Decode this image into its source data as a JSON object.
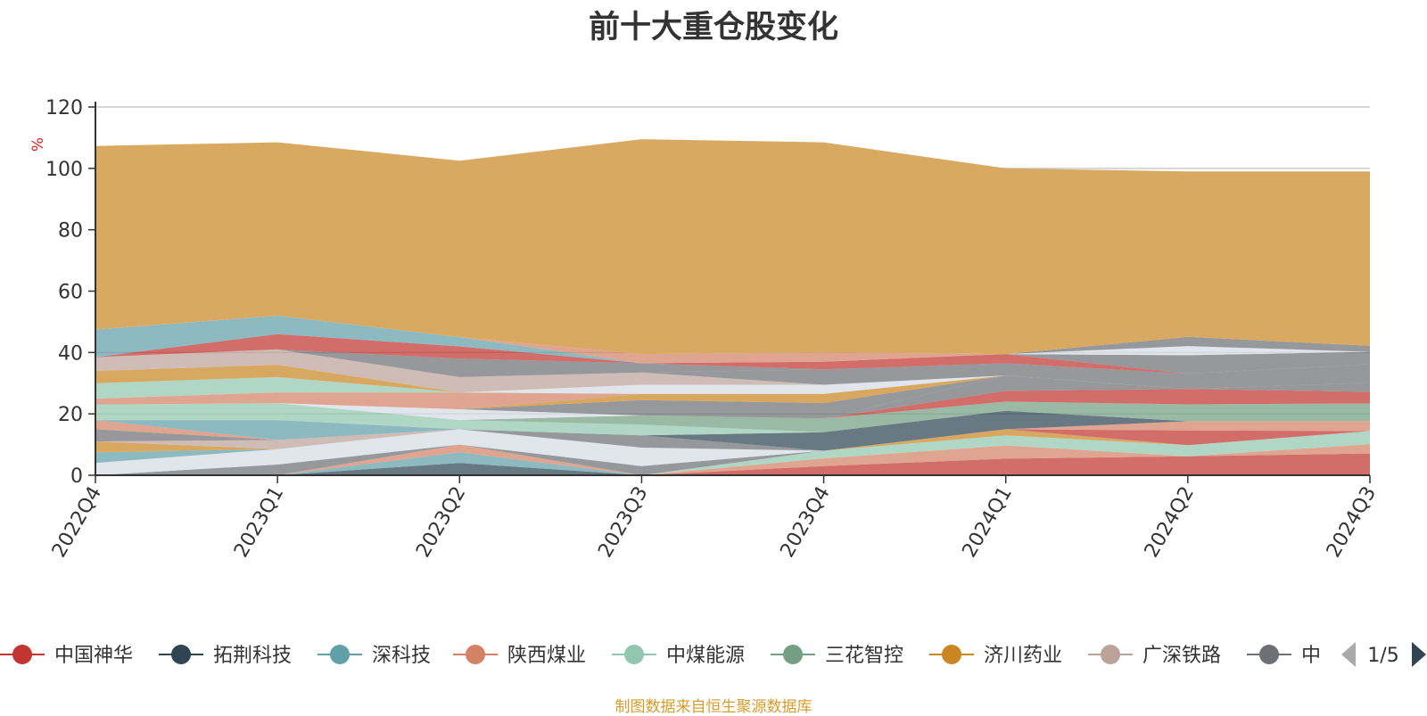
{
  "footer": "制图数据来自恒生聚源数据库",
  "legend_nav": {
    "page": "1/5"
  },
  "chart_data": {
    "type": "area",
    "stacked": true,
    "title": "前十大重仓股变化",
    "ylabel": "%",
    "ylabel_color": "#e02020",
    "ylim": [
      0,
      120
    ],
    "yticks": [
      0,
      20,
      40,
      60,
      80,
      100,
      120
    ],
    "grid": true,
    "legend_position": "bottom",
    "categories": [
      "2022Q4",
      "2023Q1",
      "2023Q2",
      "2023Q3",
      "2023Q4",
      "2024Q1",
      "2024Q2",
      "2024Q3"
    ],
    "series": [
      {
        "name": "中国神华",
        "color": "#c23531",
        "legend": true,
        "values": [
          0,
          0,
          0,
          0,
          3.0,
          5.4,
          6.2,
          7.1
        ]
      },
      {
        "name": "拓荆科技",
        "color": "#2f4554",
        "legend": true,
        "values": [
          0,
          0,
          4.0,
          0,
          0,
          0,
          0,
          0
        ]
      },
      {
        "name": "深科技",
        "color": "#61a0a8",
        "legend": true,
        "values": [
          0,
          0,
          3.5,
          0,
          0,
          0,
          0,
          0
        ]
      },
      {
        "name": "陕西煤业",
        "color": "#d48265",
        "legend": true,
        "values": [
          0,
          0,
          2.5,
          0,
          2.5,
          4.3,
          0,
          3.0
        ]
      },
      {
        "name": "中煤能源",
        "color": "#91c7ae",
        "legend": true,
        "values": [
          0,
          0,
          0,
          0,
          2.5,
          3.3,
          3.6,
          4.3
        ]
      },
      {
        "name": "三花智控",
        "color": "#749f83",
        "legend": true,
        "values": [
          0,
          0,
          0,
          0,
          0,
          0,
          0,
          0
        ]
      },
      {
        "name": "济川药业",
        "color": "#ca8622",
        "legend": true,
        "values": [
          0,
          0,
          0,
          0,
          0,
          2.0,
          0,
          0
        ]
      },
      {
        "name": "广深铁路",
        "color": "#bda29a",
        "legend": true,
        "values": [
          0,
          0,
          0,
          0,
          0,
          0,
          0,
          0
        ]
      },
      {
        "name": "中",
        "color": "#6e7074",
        "legend": true,
        "values": [
          0,
          3.5,
          0,
          3.0,
          0,
          0,
          0,
          0
        ]
      },
      {
        "color": "#d6dbe4",
        "values": [
          4.0,
          5.0,
          5.0,
          6.0,
          0,
          0,
          0,
          0
        ]
      },
      {
        "color": "#61a0a8",
        "values": [
          3.5,
          0,
          0,
          0,
          0,
          0,
          0,
          0
        ]
      },
      {
        "color": "#ca8622",
        "values": [
          3.5,
          0,
          0,
          0,
          0,
          0,
          0,
          0
        ]
      },
      {
        "color": "#bda29a",
        "values": [
          0,
          3.0,
          0,
          0,
          0,
          0,
          0,
          0
        ]
      },
      {
        "color": "#6e7074",
        "values": [
          4.0,
          0,
          0,
          4.0,
          0,
          0,
          0,
          0
        ]
      },
      {
        "color": "#c23531",
        "values": [
          0,
          0,
          0,
          0,
          0,
          0,
          4.8,
          0
        ]
      },
      {
        "color": "#d48265",
        "values": [
          3.0,
          0,
          0,
          0,
          0,
          0,
          3.0,
          3.2
        ]
      },
      {
        "color": "#61a0a8",
        "values": [
          0,
          6.5,
          0,
          0,
          0,
          0,
          0,
          0
        ]
      },
      {
        "color": "#2f4554",
        "values": [
          0,
          0,
          0,
          0,
          6.0,
          6.0,
          0,
          0
        ]
      },
      {
        "color": "#91c7ae",
        "values": [
          5.0,
          5.5,
          3.0,
          3.5,
          0,
          0,
          0,
          0
        ]
      },
      {
        "color": "#749f83",
        "values": [
          0,
          0,
          0,
          3.0,
          4.5,
          3.0,
          5.5,
          5.8
        ]
      },
      {
        "color": "#d6dbe4",
        "values": [
          0,
          0,
          3.5,
          0,
          0,
          0,
          0,
          0
        ]
      },
      {
        "color": "#c23531",
        "values": [
          0,
          0,
          0,
          0,
          0,
          3.5,
          5.0,
          3.8
        ]
      },
      {
        "color": "#6e7074",
        "values": [
          0,
          0,
          0,
          0,
          0,
          5.0,
          0,
          3.0
        ]
      },
      {
        "color": "#6e7074",
        "values": [
          0,
          0,
          0,
          5.0,
          5.0,
          0,
          0,
          0
        ]
      },
      {
        "color": "#ca8622",
        "values": [
          0,
          0,
          0,
          2.0,
          3.0,
          0,
          0,
          0
        ]
      },
      {
        "color": "#d48265",
        "values": [
          2.0,
          3.5,
          5.5,
          0,
          0,
          0,
          0,
          0
        ]
      },
      {
        "color": "#91c7ae",
        "values": [
          5.0,
          5.0,
          0,
          0,
          0,
          0,
          0,
          0
        ]
      },
      {
        "color": "#d6dbe4",
        "values": [
          0,
          0,
          0,
          3.0,
          3.0,
          0,
          0,
          0
        ]
      },
      {
        "color": "#ca8622",
        "values": [
          4.0,
          4.0,
          0,
          0,
          0,
          0,
          0,
          0
        ]
      },
      {
        "color": "#bda29a",
        "values": [
          4.5,
          5.0,
          5.0,
          4.0,
          0,
          0,
          0,
          0
        ]
      },
      {
        "color": "#6e7074",
        "values": [
          0,
          0,
          0,
          0,
          5.0,
          4.0,
          5.0,
          6.0
        ]
      },
      {
        "color": "#6e7074",
        "values": [
          0,
          0,
          6.0,
          3.0,
          0,
          0,
          0,
          0
        ]
      },
      {
        "color": "#c23531",
        "values": [
          0,
          5.0,
          4.0,
          0,
          2.5,
          3.0,
          0,
          0
        ]
      },
      {
        "color": "#6e7074",
        "values": [
          0,
          0,
          0,
          0,
          0,
          0,
          6.0,
          4.0
        ]
      },
      {
        "color": "#61a0a8",
        "values": [
          9.0,
          6.0,
          3.0,
          0,
          0,
          0,
          0,
          0
        ]
      },
      {
        "color": "#d6dbe4",
        "values": [
          0,
          0,
          0,
          0,
          0,
          0,
          3.0,
          0
        ]
      },
      {
        "color": "#6e7074",
        "values": [
          0,
          0,
          0,
          0,
          0,
          0,
          3.0,
          2.0
        ]
      },
      {
        "color": "#d48265",
        "values": [
          0,
          0,
          0,
          3.0,
          3.0,
          0,
          0,
          0
        ]
      },
      {
        "color": "#d9a962",
        "values": [
          59.8,
          56.5,
          57.5,
          70.0,
          68.5,
          60.5,
          53.9,
          56.8
        ]
      }
    ]
  }
}
